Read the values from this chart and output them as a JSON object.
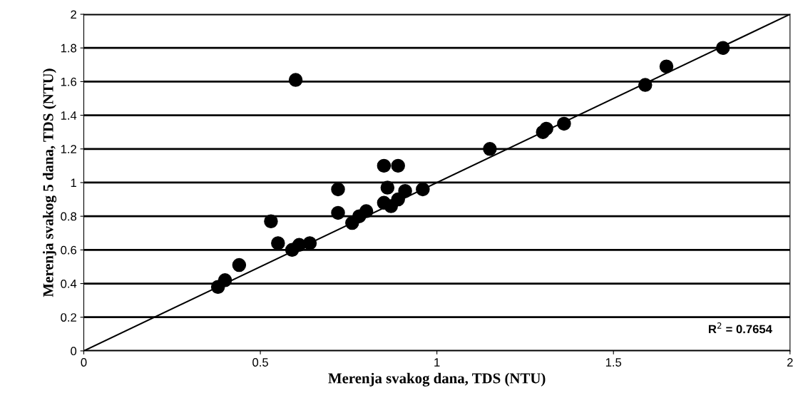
{
  "chart_data": {
    "type": "scatter",
    "xlabel": "Merenja svakog dana, TDS (NTU)",
    "ylabel": "Merenja svakog 5 dana, TDS (NTU)",
    "xlim": [
      0,
      2
    ],
    "xticks": [
      0,
      0.5,
      1,
      1.5,
      2
    ],
    "ylim": [
      0,
      2
    ],
    "yticks": [
      0,
      0.2,
      0.4,
      0.6,
      0.8,
      1,
      1.2,
      1.4,
      1.6,
      1.8,
      2
    ],
    "grid": "y",
    "annotations": [
      "R$^{2}$ = 0.7654"
    ],
    "series": [
      {
        "color": "#000000",
        "marker": "circle",
        "x": [
          0.38,
          0.4,
          0.44,
          0.53,
          0.55,
          0.59,
          0.61,
          0.64,
          0.6,
          0.72,
          0.72,
          0.76,
          0.78,
          0.8,
          0.85,
          0.87,
          0.86,
          0.85,
          0.89,
          0.89,
          0.91,
          0.96,
          1.15,
          1.3,
          1.31,
          1.36,
          1.59,
          1.65,
          1.81
        ],
        "values": [
          0.38,
          0.42,
          0.51,
          0.77,
          0.64,
          0.6,
          0.63,
          0.64,
          1.61,
          0.82,
          0.96,
          0.76,
          0.8,
          0.83,
          0.88,
          0.86,
          0.97,
          1.1,
          1.1,
          0.9,
          0.95,
          0.96,
          1.2,
          1.3,
          1.32,
          1.35,
          1.58,
          1.69,
          1.8
        ]
      },
      {
        "type": "line",
        "color": "#000000",
        "x": [
          0,
          2
        ],
        "values": [
          0,
          2
        ]
      }
    ]
  }
}
